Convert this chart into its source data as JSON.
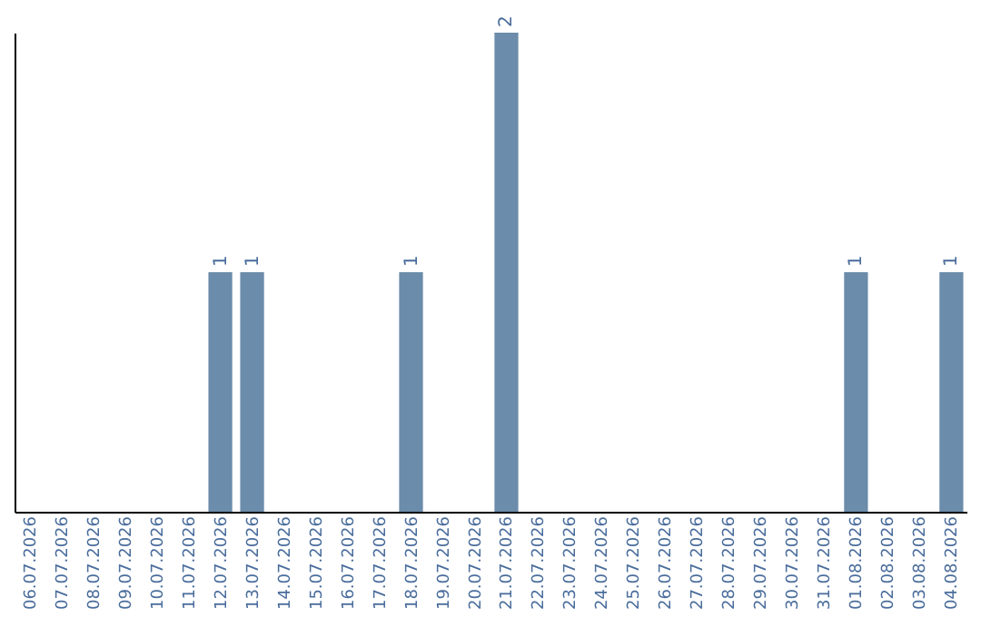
{
  "chart_data": {
    "type": "bar",
    "categories": [
      "06.07.2026",
      "07.07.2026",
      "08.07.2026",
      "09.07.2026",
      "10.07.2026",
      "11.07.2026",
      "12.07.2026",
      "13.07.2026",
      "14.07.2026",
      "15.07.2026",
      "16.07.2026",
      "17.07.2026",
      "18.07.2026",
      "19.07.2026",
      "20.07.2026",
      "21.07.2026",
      "22.07.2026",
      "23.07.2026",
      "24.07.2026",
      "25.07.2026",
      "26.07.2026",
      "27.07.2026",
      "28.07.2026",
      "29.07.2026",
      "30.07.2026",
      "31.07.2026",
      "01.08.2026",
      "02.08.2026",
      "03.08.2026",
      "04.08.2026"
    ],
    "values": [
      0,
      0,
      0,
      0,
      0,
      0,
      1,
      1,
      0,
      0,
      0,
      0,
      1,
      0,
      0,
      2,
      0,
      0,
      0,
      0,
      0,
      0,
      0,
      0,
      0,
      0,
      1,
      0,
      0,
      1
    ],
    "value_labels": [
      null,
      null,
      null,
      null,
      null,
      null,
      "1",
      "1",
      null,
      null,
      null,
      null,
      "1",
      null,
      null,
      "2",
      null,
      null,
      null,
      null,
      null,
      null,
      null,
      null,
      null,
      null,
      "1",
      null,
      null,
      "1"
    ],
    "color": "#6b8caa",
    "ylim": [
      0,
      2
    ],
    "tick_labels": "x",
    "grid": false
  }
}
